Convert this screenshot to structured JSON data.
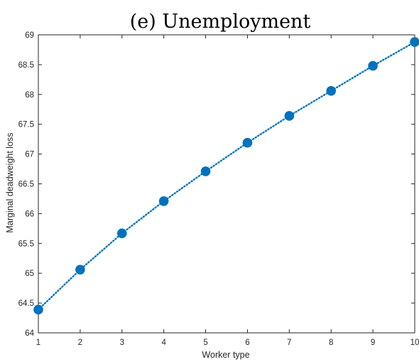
{
  "chart_data": {
    "type": "line",
    "title": "(e) Unemployment",
    "xlabel": "Worker type",
    "ylabel": "Marginal deadweight loss",
    "xlim": [
      1,
      10
    ],
    "ylim": [
      64,
      69
    ],
    "xticks": [
      1,
      2,
      3,
      4,
      5,
      6,
      7,
      8,
      9,
      10
    ],
    "yticks": [
      64,
      64.5,
      65,
      65.5,
      66,
      66.5,
      67,
      67.5,
      68,
      68.5,
      69
    ],
    "grid": false,
    "legend": "none",
    "series": [
      {
        "color": "#0072BD",
        "marker": "circle",
        "line_style": "dotted",
        "x": [
          1,
          2,
          3,
          4,
          5,
          6,
          7,
          8,
          9,
          10
        ],
        "y": [
          64.39,
          65.06,
          65.67,
          66.21,
          66.71,
          67.19,
          67.64,
          68.06,
          68.48,
          68.88
        ]
      }
    ]
  }
}
